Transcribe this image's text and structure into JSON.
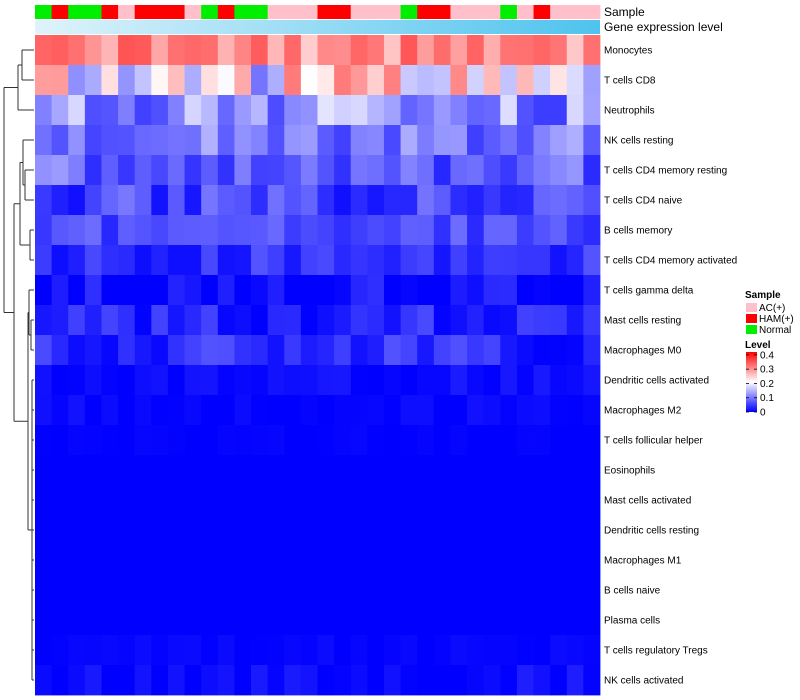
{
  "chart_data": {
    "type": "heatmap",
    "annotation_labels": [
      "Sample",
      "Gene expression level"
    ],
    "rows": [
      "Monocytes",
      "T cells CD8",
      "Neutrophils",
      "NK cells resting",
      "T cells CD4 memory resting",
      "T cells CD4 naive",
      "B cells memory",
      "T cells CD4 memory activated",
      "T cells gamma delta",
      "Mast cells resting",
      "Macrophages M0",
      "Dendritic cells activated",
      "Macrophages M2",
      "T cells follicular helper",
      "Eosinophils",
      "Mast cells activated",
      "Dendritic cells resting",
      "Macrophages M1",
      "B cells naive",
      "Plasma cells",
      "T cells regulatory  Tregs",
      "NK cells activated"
    ],
    "sample_groups": [
      "Normal",
      "HAM(+)",
      "Normal",
      "Normal",
      "HAM(+)",
      "AC(+)",
      "HAM(+)",
      "HAM(+)",
      "HAM(+)",
      "AC(+)",
      "Normal",
      "HAM(+)",
      "Normal",
      "Normal",
      "AC(+)",
      "AC(+)",
      "AC(+)",
      "HAM(+)",
      "HAM(+)",
      "AC(+)",
      "AC(+)",
      "AC(+)",
      "Normal",
      "HAM(+)",
      "HAM(+)",
      "AC(+)",
      "AC(+)",
      "AC(+)",
      "Normal",
      "AC(+)",
      "HAM(+)",
      "AC(+)",
      "AC(+)",
      "AC(+)"
    ],
    "sample_legend": {
      "title": "Sample",
      "entries": [
        {
          "label": "AC(+)",
          "color": "#ffc0cb"
        },
        {
          "label": "HAM(+)",
          "color": "#ff0000"
        },
        {
          "label": "Normal",
          "color": "#00ee00"
        }
      ]
    },
    "level_legend": {
      "title": "Level",
      "ticks": [
        "0.4",
        "0.3",
        "0.2",
        "0.1",
        "0"
      ],
      "tick_values": [
        0.4,
        0.3,
        0.2,
        0.1,
        0
      ],
      "range": [
        0,
        0.42
      ],
      "colors": [
        "#0000ff",
        "#ffffff",
        "#ff0000"
      ]
    },
    "row_base_levels": [
      0.3,
      0.2,
      0.12,
      0.1,
      0.08,
      0.05,
      0.06,
      0.04,
      0.01,
      0.03,
      0.035,
      0.01,
      0.006,
      0.002,
      0,
      0,
      0,
      0,
      0,
      0,
      0.003,
      0.005
    ],
    "row_variation": [
      0.06,
      0.12,
      0.07,
      0.05,
      0.05,
      0.05,
      0.03,
      0.03,
      0.03,
      0.03,
      0.035,
      0.012,
      0.01,
      0.004,
      0,
      0,
      0,
      0,
      0,
      0,
      0.006,
      0.02
    ]
  }
}
